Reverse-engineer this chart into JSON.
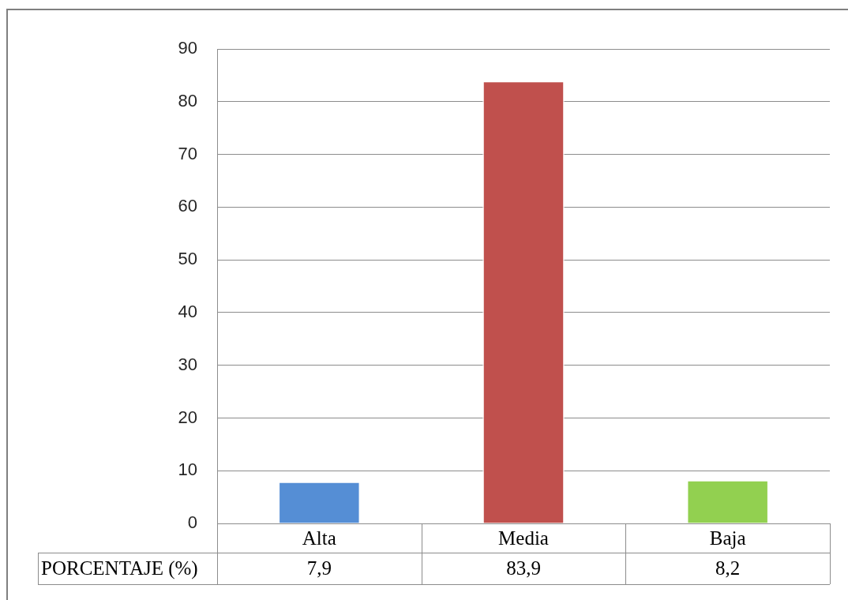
{
  "chart_data": {
    "type": "bar",
    "categories": [
      "Alta",
      "Media",
      "Baja"
    ],
    "series": [
      {
        "name": "PORCENTAJE (%)",
        "colors": [
          "#558ed5",
          "#c0504d",
          "#92d050"
        ],
        "values": [
          7.9,
          83.9,
          8.2
        ],
        "value_labels": [
          "7,9",
          "83,9",
          "8,2"
        ]
      }
    ],
    "ylim": [
      0,
      90
    ],
    "yticks": [
      0,
      10,
      20,
      30,
      40,
      50,
      60,
      70,
      80,
      90
    ],
    "grid": "y",
    "legend": false
  }
}
